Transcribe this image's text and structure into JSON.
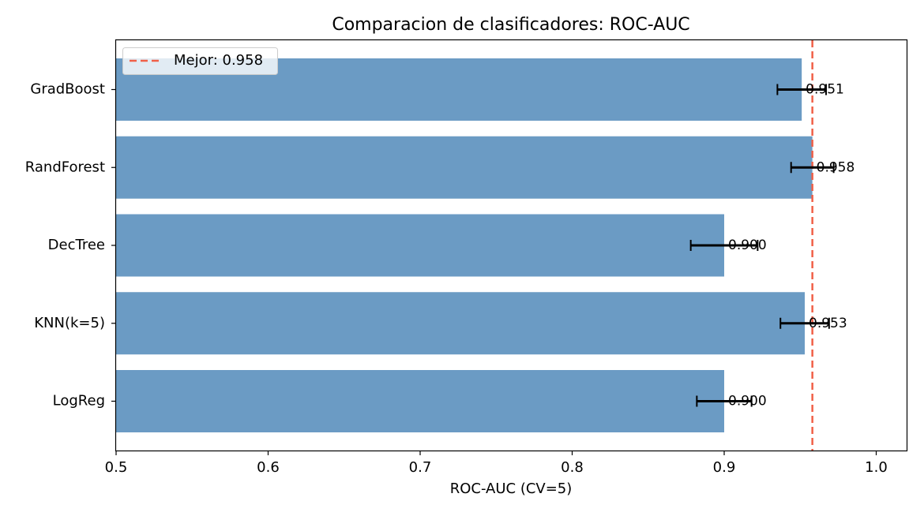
{
  "chart_data": {
    "type": "bar",
    "orientation": "horizontal",
    "title": "Comparacion de clasificadores: ROC-AUC",
    "xlabel": "ROC-AUC (CV=5)",
    "ylabel": "",
    "xlim": [
      0.5,
      1.02
    ],
    "x_ticks": [
      {
        "value": 0.5,
        "label": "0.5"
      },
      {
        "value": 0.6,
        "label": "0.6"
      },
      {
        "value": 0.7,
        "label": "0.7"
      },
      {
        "value": 0.8,
        "label": "0.8"
      },
      {
        "value": 0.9,
        "label": "0.9"
      },
      {
        "value": 1.0,
        "label": "1.0"
      }
    ],
    "categories": [
      "GradBoost",
      "RandForest",
      "DecTree",
      "KNN(k=5)",
      "LogReg"
    ],
    "values": [
      0.951,
      0.958,
      0.9,
      0.953,
      0.9
    ],
    "errors": [
      0.016,
      0.014,
      0.022,
      0.016,
      0.018
    ],
    "value_labels": [
      "0.951",
      "0.958",
      "0.900",
      "0.953",
      "0.900"
    ],
    "bar_color": "#6b9bc4",
    "errorbar_color": "#000000",
    "reference_line": {
      "value": 0.958,
      "label": "Mejor: 0.958",
      "color": "#f06048",
      "style": "dashed"
    },
    "legend": {
      "placement": "top-left",
      "entries": [
        "Mejor: 0.958"
      ]
    },
    "grid": false
  }
}
